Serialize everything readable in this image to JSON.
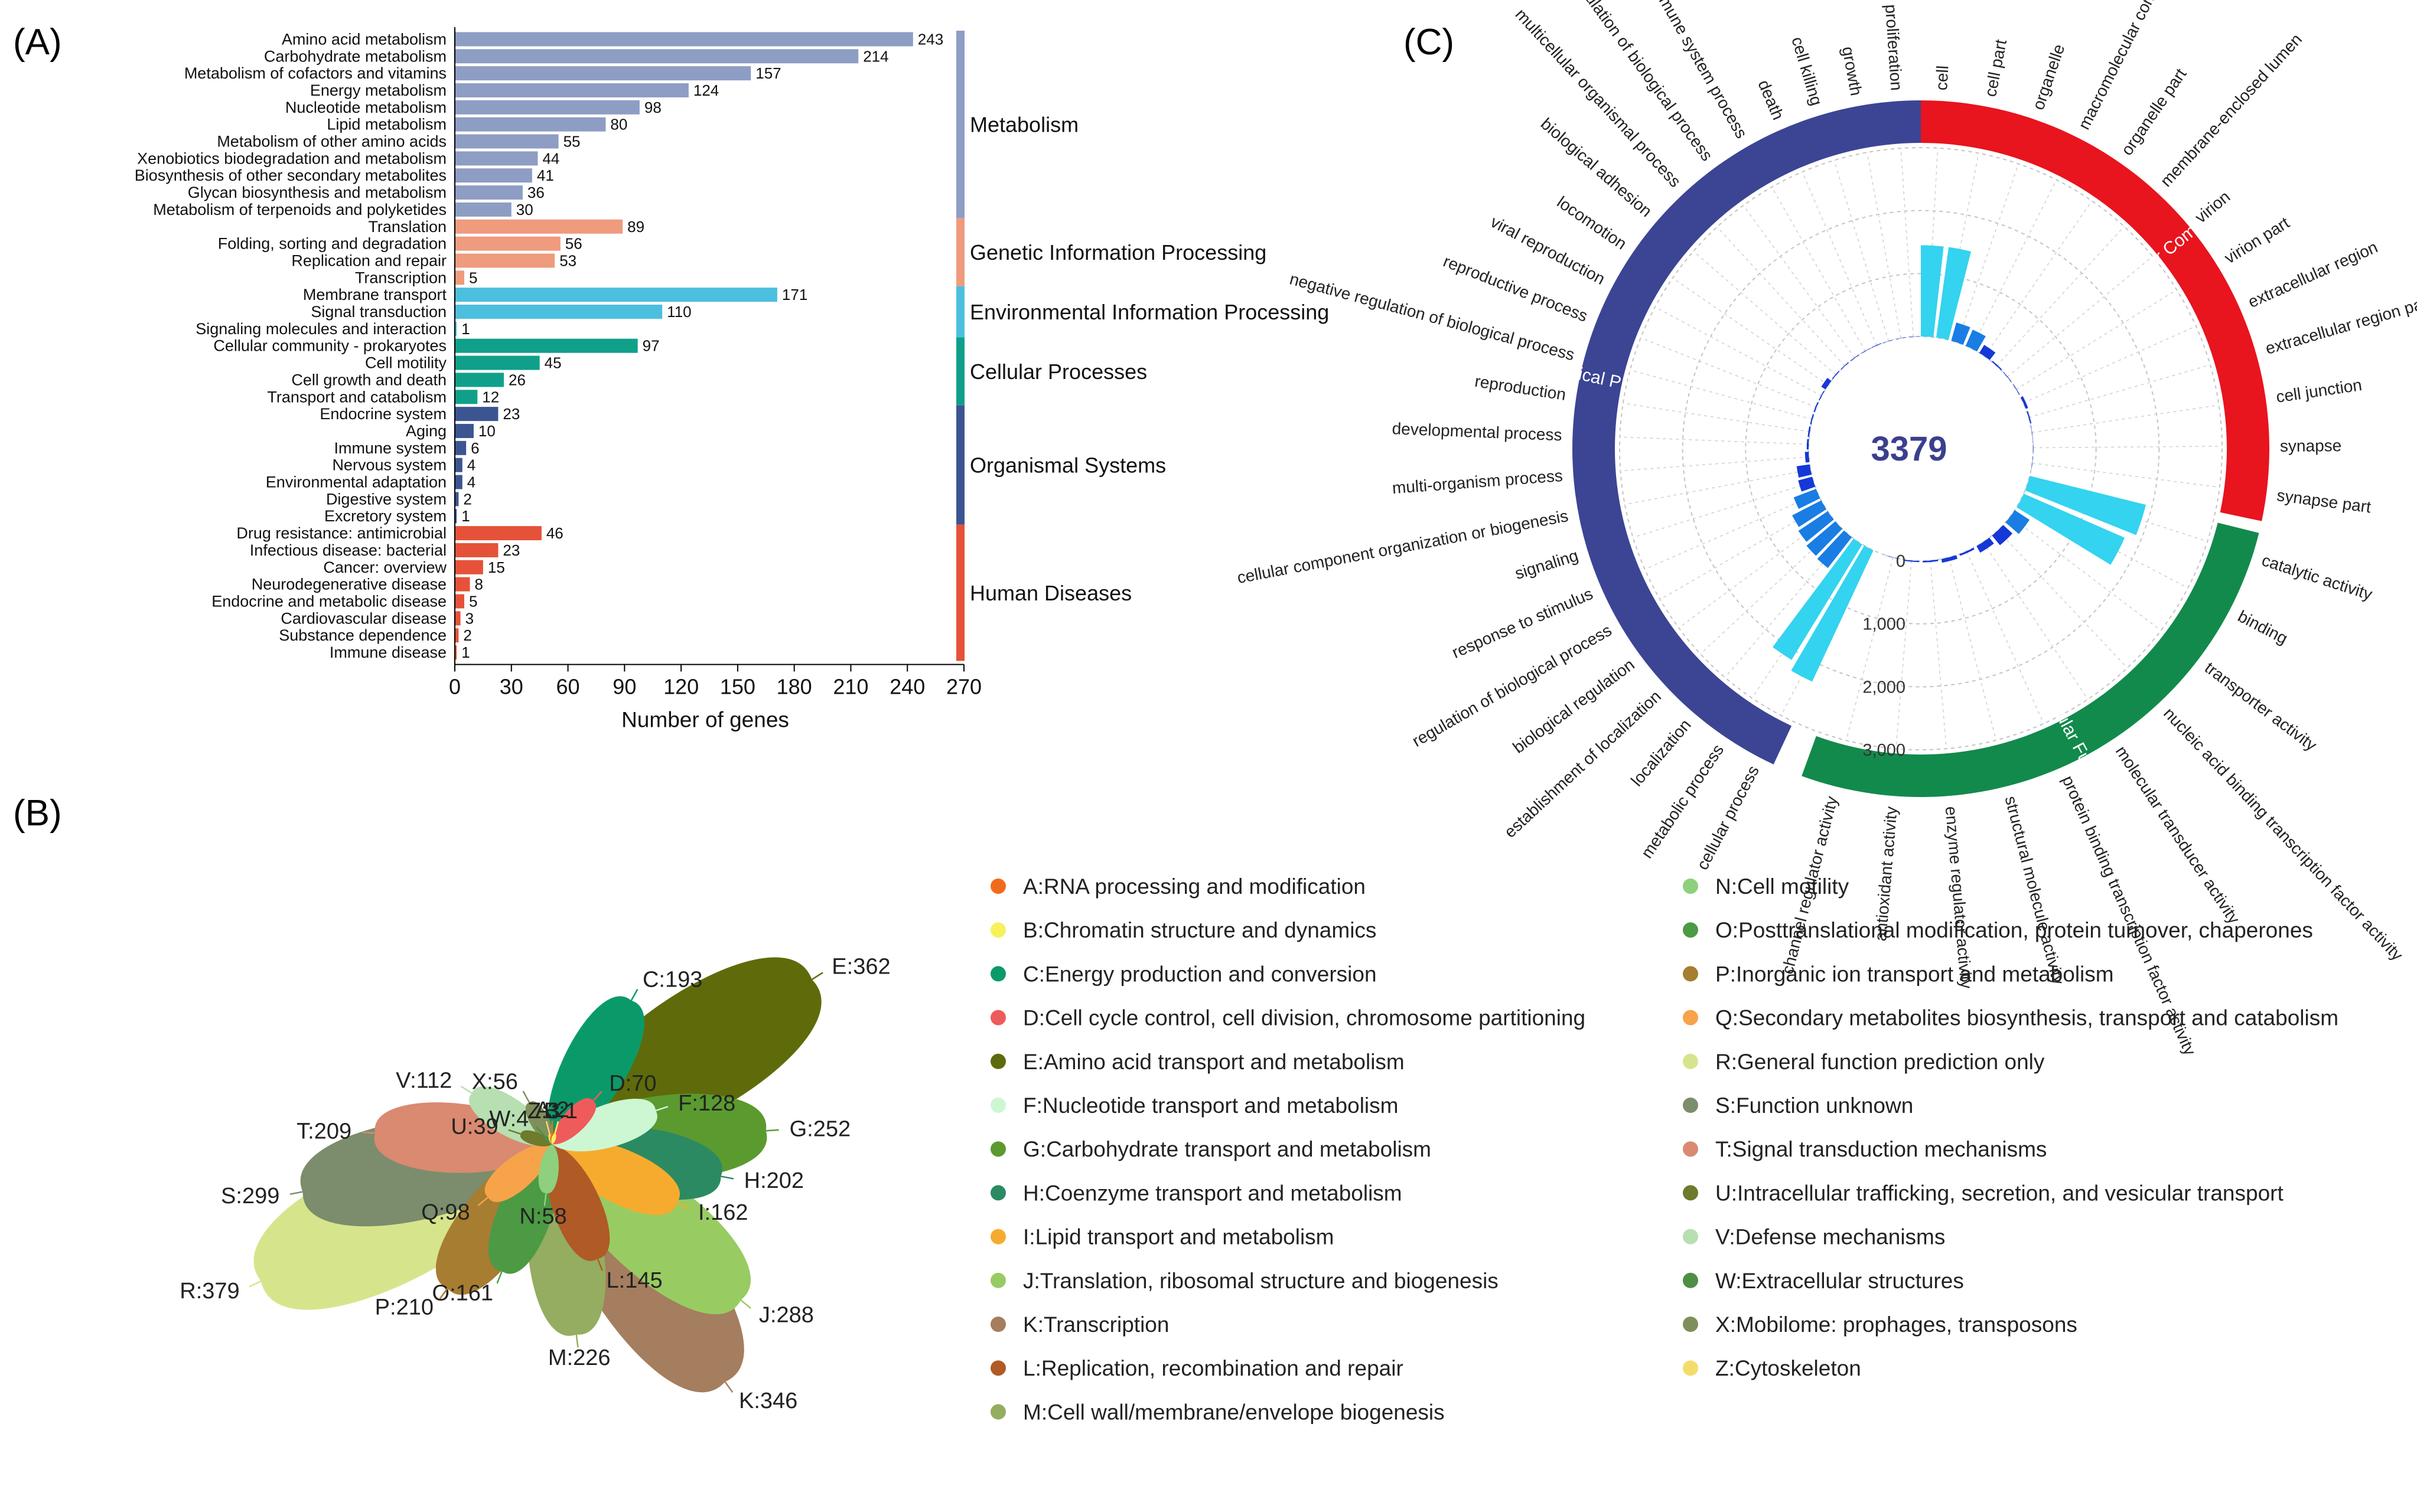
{
  "panel_labels": {
    "a": "(A)",
    "b": "(B)",
    "c": "(C)"
  },
  "chart_data": [
    {
      "id": "A",
      "type": "bar",
      "orientation": "horizontal",
      "title": "",
      "xlabel": "Number of genes",
      "ylabel": "",
      "xlim": [
        0,
        270
      ],
      "xticks": [
        0,
        30,
        60,
        90,
        120,
        150,
        180,
        210,
        240,
        270
      ],
      "groups": [
        {
          "name": "Metabolism",
          "color": "#8e9dc4",
          "items": [
            {
              "label": "Amino acid metabolism",
              "value": 243
            },
            {
              "label": "Carbohydrate metabolism",
              "value": 214
            },
            {
              "label": "Metabolism of cofactors and vitamins",
              "value": 157
            },
            {
              "label": "Energy metabolism",
              "value": 124
            },
            {
              "label": "Nucleotide metabolism",
              "value": 98
            },
            {
              "label": "Lipid metabolism",
              "value": 80
            },
            {
              "label": "Metabolism of other amino acids",
              "value": 55
            },
            {
              "label": "Xenobiotics biodegradation and metabolism",
              "value": 44
            },
            {
              "label": "Biosynthesis of other secondary metabolites",
              "value": 41
            },
            {
              "label": "Glycan biosynthesis and metabolism",
              "value": 36
            },
            {
              "label": "Metabolism of terpenoids and polyketides",
              "value": 30
            }
          ]
        },
        {
          "name": "Genetic Information Processing",
          "color": "#ef9b7d",
          "items": [
            {
              "label": "Translation",
              "value": 89
            },
            {
              "label": "Folding, sorting and degradation",
              "value": 56
            },
            {
              "label": "Replication and repair",
              "value": 53
            },
            {
              "label": "Transcription",
              "value": 5
            }
          ]
        },
        {
          "name": "Environmental Information Processing",
          "color": "#4cbfdf",
          "items": [
            {
              "label": "Membrane transport",
              "value": 171
            },
            {
              "label": "Signal transduction",
              "value": 110
            },
            {
              "label": "Signaling molecules and interaction",
              "value": 1
            }
          ]
        },
        {
          "name": "Cellular Processes",
          "color": "#10a08a",
          "items": [
            {
              "label": "Cellular community - prokaryotes",
              "value": 97
            },
            {
              "label": "Cell motility",
              "value": 45
            },
            {
              "label": "Cell growth and death",
              "value": 26
            },
            {
              "label": "Transport and catabolism",
              "value": 12
            }
          ]
        },
        {
          "name": "Organismal Systems",
          "color": "#3c5592",
          "items": [
            {
              "label": "Endocrine system",
              "value": 23
            },
            {
              "label": "Aging",
              "value": 10
            },
            {
              "label": "Immune system",
              "value": 6
            },
            {
              "label": "Nervous system",
              "value": 4
            },
            {
              "label": "Environmental adaptation",
              "value": 4
            },
            {
              "label": "Digestive system",
              "value": 2
            },
            {
              "label": "Excretory system",
              "value": 1
            }
          ]
        },
        {
          "name": "Human Diseases",
          "color": "#e55239",
          "items": [
            {
              "label": "Drug resistance: antimicrobial",
              "value": 46
            },
            {
              "label": "Infectious disease: bacterial",
              "value": 23
            },
            {
              "label": "Cancer: overview",
              "value": 15
            },
            {
              "label": "Neurodegenerative disease",
              "value": 8
            },
            {
              "label": "Endocrine and metabolic disease",
              "value": 5
            },
            {
              "label": "Cardiovascular disease",
              "value": 3
            },
            {
              "label": "Substance dependence",
              "value": 2
            },
            {
              "label": "Immune disease",
              "value": 1
            }
          ]
        }
      ]
    },
    {
      "id": "B",
      "type": "flower",
      "title": "",
      "max_value": 379,
      "categories": [
        {
          "code": "A",
          "name": "RNA processing and modification",
          "value": 2,
          "color": "#f26b1d"
        },
        {
          "code": "B",
          "name": "Chromatin structure and dynamics",
          "value": 1,
          "color": "#f5f25b"
        },
        {
          "code": "C",
          "name": "Energy production and conversion",
          "value": 193,
          "color": "#0a9a6a"
        },
        {
          "code": "D",
          "name": "Cell cycle control, cell division, chromosome partitioning",
          "value": 70,
          "color": "#ef5b5b"
        },
        {
          "code": "E",
          "name": "Amino acid transport and metabolism",
          "value": 362,
          "color": "#5f6b0a"
        },
        {
          "code": "F",
          "name": "Nucleotide transport and metabolism",
          "value": 128,
          "color": "#cdf7d2"
        },
        {
          "code": "G",
          "name": "Carbohydrate transport and metabolism",
          "value": 252,
          "color": "#5b9a2f"
        },
        {
          "code": "H",
          "name": "Coenzyme transport and metabolism",
          "value": 202,
          "color": "#2c8a62"
        },
        {
          "code": "I",
          "name": "Lipid transport and metabolism",
          "value": 162,
          "color": "#f7ab2e"
        },
        {
          "code": "J",
          "name": "Translation, ribosomal structure and biogenesis",
          "value": 288,
          "color": "#98cc62"
        },
        {
          "code": "K",
          "name": "Transcription",
          "value": 346,
          "color": "#a47e5e"
        },
        {
          "code": "L",
          "name": "Replication, recombination and repair",
          "value": 145,
          "color": "#b05a26"
        },
        {
          "code": "M",
          "name": "Cell wall/membrane/envelope biogenesis",
          "value": 226,
          "color": "#94ad60"
        },
        {
          "code": "N",
          "name": "Cell motility",
          "value": 58,
          "color": "#8ed07e"
        },
        {
          "code": "O",
          "name": "Posttranslational modification, protein turnover, chaperones",
          "value": 161,
          "color": "#4c9a44"
        },
        {
          "code": "P",
          "name": "Inorganic ion transport and metabolism",
          "value": 210,
          "color": "#a77d31"
        },
        {
          "code": "Q",
          "name": "Secondary metabolites biosynthesis, transport and catabolism",
          "value": 98,
          "color": "#f7a349"
        },
        {
          "code": "R",
          "name": "General function prediction only",
          "value": 379,
          "color": "#d6e58c"
        },
        {
          "code": "S",
          "name": "Function unknown",
          "value": 299,
          "color": "#7b8d6c"
        },
        {
          "code": "T",
          "name": "Signal transduction mechanisms",
          "value": 209,
          "color": "#d98a70"
        },
        {
          "code": "U",
          "name": "Intracellular trafficking, secretion, and vesicular transport",
          "value": 39,
          "color": "#6e7a2c"
        },
        {
          "code": "V",
          "name": "Defense mechanisms",
          "value": 112,
          "color": "#b7dfb1"
        },
        {
          "code": "W",
          "name": "Extracellular structures",
          "value": 4,
          "color": "#4e8f44"
        },
        {
          "code": "X",
          "name": "Mobilome: prophages, transposons",
          "value": 56,
          "color": "#7f8f5c"
        },
        {
          "code": "Z",
          "name": "Cytoskeleton",
          "value": 3,
          "color": "#f4dc6a"
        }
      ]
    },
    {
      "id": "C",
      "type": "radial_bar",
      "title": "",
      "center_label": "3379",
      "radial_ticks": [
        "0",
        "1,000",
        "2,000",
        "3,000"
      ],
      "rmax": 3000,
      "groups": [
        {
          "name": "Biological Process",
          "color": "#3b4594",
          "items": [
            {
              "label": "cellular process",
              "value": 2300
            },
            {
              "label": "metabolic process",
              "value": 2150
            },
            {
              "label": "localization",
              "value": 620
            },
            {
              "label": "establishment of localization",
              "value": 600
            },
            {
              "label": "biological regulation",
              "value": 560
            },
            {
              "label": "regulation of biological process",
              "value": 520
            },
            {
              "label": "response to stimulus",
              "value": 380
            },
            {
              "label": "signaling",
              "value": 230
            },
            {
              "label": "cellular component organization or biogenesis",
              "value": 210
            },
            {
              "label": "multi-organism process",
              "value": 60
            },
            {
              "label": "developmental process",
              "value": 30
            },
            {
              "label": "reproduction",
              "value": 25
            },
            {
              "label": "negative regulation of biological process",
              "value": 20
            },
            {
              "label": "reproductive process",
              "value": 20
            },
            {
              "label": "viral reproduction",
              "value": 15
            },
            {
              "label": "locomotion",
              "value": 80
            },
            {
              "label": "biological adhesion",
              "value": 15
            },
            {
              "label": "multicellular organismal process",
              "value": 12
            },
            {
              "label": "positive regulation of biological process",
              "value": 10
            },
            {
              "label": "immune system process",
              "value": 8
            },
            {
              "label": "death",
              "value": 10
            },
            {
              "label": "cell killing",
              "value": 5
            },
            {
              "label": "growth",
              "value": 5
            },
            {
              "label": "cell proliferation",
              "value": 5
            }
          ]
        },
        {
          "name": "Cellular Component",
          "color": "#e8141e",
          "items": [
            {
              "label": "cell",
              "value": 1450
            },
            {
              "label": "cell part",
              "value": 1450
            },
            {
              "label": "organelle",
              "value": 300
            },
            {
              "label": "macromolecular complex",
              "value": 280
            },
            {
              "label": "organelle part",
              "value": 150
            },
            {
              "label": "membrane-enclosed lumen",
              "value": 20
            },
            {
              "label": "virion",
              "value": 10
            },
            {
              "label": "virion part",
              "value": 10
            },
            {
              "label": "extracellular region",
              "value": 40
            },
            {
              "label": "extracellular region part",
              "value": 20
            },
            {
              "label": "cell junction",
              "value": 5
            },
            {
              "label": "synapse",
              "value": 5
            },
            {
              "label": "synapse part",
              "value": 5
            }
          ]
        },
        {
          "name": "Molecular Function",
          "color": "#128a4c",
          "items": [
            {
              "label": "catalytic activity",
              "value": 1900
            },
            {
              "label": "binding",
              "value": 1750
            },
            {
              "label": "transporter activity",
              "value": 280
            },
            {
              "label": "nucleic acid binding transcription factor activity",
              "value": 200
            },
            {
              "label": "molecular transducer activity",
              "value": 120
            },
            {
              "label": "protein binding transcription factor activity",
              "value": 30
            },
            {
              "label": "structural molecule activity",
              "value": 60
            },
            {
              "label": "enzyme regulator activity",
              "value": 25
            },
            {
              "label": "antioxidant activity",
              "value": 20
            },
            {
              "label": "channel regulator activity",
              "value": 5
            }
          ]
        }
      ]
    }
  ]
}
